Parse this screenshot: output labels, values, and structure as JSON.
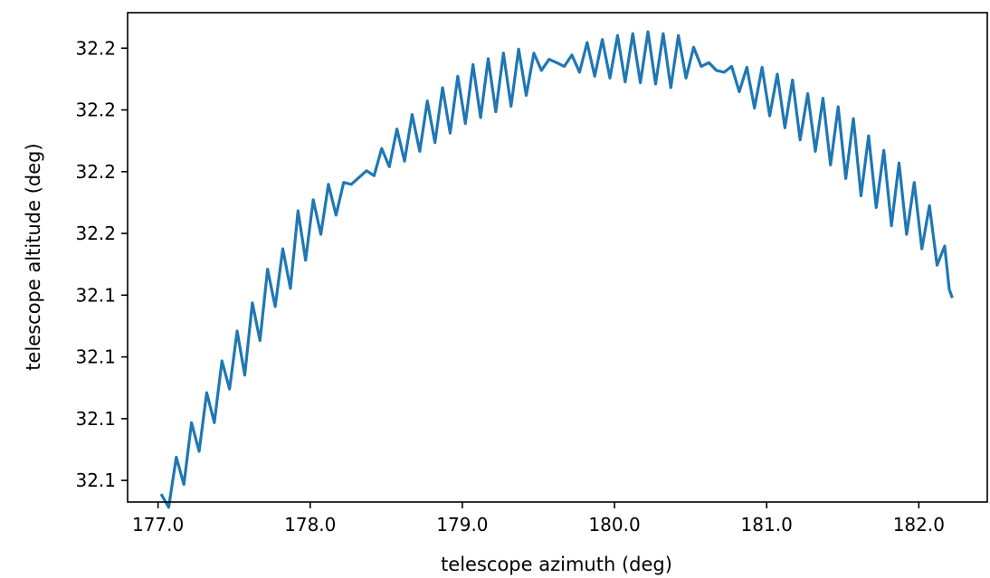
{
  "chart_data": {
    "type": "line",
    "title": "",
    "xlabel": "telescope azimuth (deg)",
    "ylabel": "telescope altitude (deg)",
    "xlim": [
      176.8,
      182.45
    ],
    "ylim": [
      32.083,
      32.2415
    ],
    "x_ticks": [
      {
        "value": 177.0,
        "label": "177.0"
      },
      {
        "value": 178.0,
        "label": "178.0"
      },
      {
        "value": 179.0,
        "label": "179.0"
      },
      {
        "value": 180.0,
        "label": "180.0"
      },
      {
        "value": 181.0,
        "label": "181.0"
      },
      {
        "value": 182.0,
        "label": "182.0"
      }
    ],
    "y_ticks": [
      {
        "value": 32.09,
        "label": "32.1"
      },
      {
        "value": 32.11,
        "label": "32.1"
      },
      {
        "value": 32.13,
        "label": "32.1"
      },
      {
        "value": 32.15,
        "label": "32.1"
      },
      {
        "value": 32.17,
        "label": "32.2"
      },
      {
        "value": 32.19,
        "label": "32.2"
      },
      {
        "value": 32.21,
        "label": "32.2"
      },
      {
        "value": 32.23,
        "label": "32.2"
      },
      {
        "value": 32.25,
        "label": "32.2"
      }
    ],
    "grid": false,
    "series": [
      {
        "color": "#1f77b4",
        "points": [
          [
            177.02,
            32.0856
          ],
          [
            177.07,
            32.0813
          ],
          [
            177.12,
            32.0975
          ],
          [
            177.17,
            32.0887
          ],
          [
            177.22,
            32.1087
          ],
          [
            177.27,
            32.0994
          ],
          [
            177.32,
            32.1184
          ],
          [
            177.37,
            32.1087
          ],
          [
            177.42,
            32.1287
          ],
          [
            177.47,
            32.1196
          ],
          [
            177.52,
            32.1384
          ],
          [
            177.57,
            32.1241
          ],
          [
            177.62,
            32.1475
          ],
          [
            177.67,
            32.1353
          ],
          [
            177.72,
            32.1584
          ],
          [
            177.77,
            32.1463
          ],
          [
            177.82,
            32.165
          ],
          [
            177.87,
            32.1522
          ],
          [
            177.92,
            32.1773
          ],
          [
            177.97,
            32.1613
          ],
          [
            178.02,
            32.1809
          ],
          [
            178.07,
            32.1697
          ],
          [
            178.12,
            32.1859
          ],
          [
            178.17,
            32.1759
          ],
          [
            178.22,
            32.1865
          ],
          [
            178.27,
            32.1859
          ],
          [
            178.32,
            32.1881
          ],
          [
            178.37,
            32.1903
          ],
          [
            178.42,
            32.1887
          ],
          [
            178.47,
            32.1975
          ],
          [
            178.52,
            32.1916
          ],
          [
            178.57,
            32.2038
          ],
          [
            178.62,
            32.1934
          ],
          [
            178.67,
            32.2085
          ],
          [
            178.72,
            32.1966
          ],
          [
            178.77,
            32.2129
          ],
          [
            178.82,
            32.1994
          ],
          [
            178.87,
            32.2172
          ],
          [
            178.92,
            32.2025
          ],
          [
            178.97,
            32.2209
          ],
          [
            179.02,
            32.2056
          ],
          [
            179.07,
            32.2247
          ],
          [
            179.12,
            32.2075
          ],
          [
            179.17,
            32.2266
          ],
          [
            179.22,
            32.2094
          ],
          [
            179.27,
            32.2284
          ],
          [
            179.32,
            32.2112
          ],
          [
            179.37,
            32.2297
          ],
          [
            179.42,
            32.2147
          ],
          [
            179.47,
            32.2284
          ],
          [
            179.52,
            32.2228
          ],
          [
            179.57,
            32.2264
          ],
          [
            179.62,
            32.2253
          ],
          [
            179.67,
            32.2241
          ],
          [
            179.72,
            32.2278
          ],
          [
            179.77,
            32.2222
          ],
          [
            179.82,
            32.2318
          ],
          [
            179.87,
            32.2209
          ],
          [
            179.92,
            32.2328
          ],
          [
            179.97,
            32.2203
          ],
          [
            180.02,
            32.2341
          ],
          [
            180.07,
            32.2191
          ],
          [
            180.12,
            32.2347
          ],
          [
            180.17,
            32.2188
          ],
          [
            180.22,
            32.2353
          ],
          [
            180.27,
            32.2184
          ],
          [
            180.32,
            32.2347
          ],
          [
            180.37,
            32.2172
          ],
          [
            180.42,
            32.2341
          ],
          [
            180.47,
            32.2203
          ],
          [
            180.52,
            32.2303
          ],
          [
            180.57,
            32.2241
          ],
          [
            180.62,
            32.2253
          ],
          [
            180.67,
            32.2228
          ],
          [
            180.72,
            32.2222
          ],
          [
            180.77,
            32.2241
          ],
          [
            180.82,
            32.2159
          ],
          [
            180.87,
            32.2238
          ],
          [
            180.92,
            32.2106
          ],
          [
            180.97,
            32.2238
          ],
          [
            181.02,
            32.2081
          ],
          [
            181.07,
            32.2216
          ],
          [
            181.12,
            32.2042
          ],
          [
            181.17,
            32.2197
          ],
          [
            181.22,
            32.2003
          ],
          [
            181.27,
            32.2153
          ],
          [
            181.32,
            32.1966
          ],
          [
            181.37,
            32.2138
          ],
          [
            181.42,
            32.1922
          ],
          [
            181.47,
            32.211
          ],
          [
            181.52,
            32.1878
          ],
          [
            181.57,
            32.2072
          ],
          [
            181.62,
            32.1822
          ],
          [
            181.67,
            32.2016
          ],
          [
            181.72,
            32.1784
          ],
          [
            181.77,
            32.1969
          ],
          [
            181.82,
            32.1725
          ],
          [
            181.87,
            32.1928
          ],
          [
            181.92,
            32.1697
          ],
          [
            181.97,
            32.1865
          ],
          [
            182.02,
            32.165
          ],
          [
            182.07,
            32.179
          ],
          [
            182.12,
            32.1597
          ],
          [
            182.17,
            32.1659
          ],
          [
            182.2,
            32.1519
          ],
          [
            182.22,
            32.1491
          ]
        ]
      }
    ]
  }
}
